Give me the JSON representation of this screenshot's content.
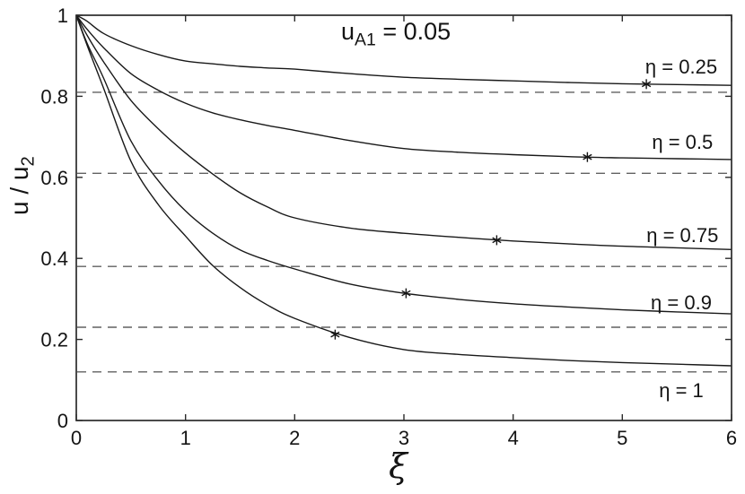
{
  "figure": {
    "background": "#ffffff",
    "annotation": {
      "pre": "u",
      "sub": "A1",
      "post": " = 0.05",
      "plain": "u_A1 = 0.05"
    },
    "ylabel": {
      "pre": "u / u",
      "sub": "2",
      "plain": "u / u_2"
    },
    "xlabel": "ξ"
  },
  "chart_data": {
    "type": "line",
    "title": "u_A1 = 0.05",
    "xlabel": "ξ",
    "ylabel": "u / u_2",
    "xlim": [
      0,
      6
    ],
    "ylim": [
      0,
      1
    ],
    "xticks": [
      0,
      1,
      2,
      3,
      4,
      5,
      6
    ],
    "xtick_labels": [
      "0",
      "1",
      "2",
      "3",
      "4",
      "5",
      "6"
    ],
    "yticks": [
      0,
      0.2,
      0.4,
      0.6,
      0.8,
      1
    ],
    "ytick_labels": [
      "0",
      "0.2",
      "0.4",
      "0.6",
      "0.8",
      "1"
    ],
    "grid": false,
    "legend_position": "inline-right-labels",
    "line_color": "#191919",
    "dashed_color": "#616161",
    "marker_style": "asterisk",
    "x": [
      0,
      0.1,
      0.25,
      0.5,
      0.75,
      1,
      1.25,
      1.5,
      1.75,
      2,
      2.5,
      3,
      3.5,
      4,
      4.5,
      5,
      5.5,
      6
    ],
    "series": [
      {
        "name": "η = 0.25",
        "eta": 0.25,
        "asymptote": 0.81,
        "marker": {
          "x": 5.22,
          "y": 0.83
        },
        "label": {
          "text": "η = 0.25",
          "x": 5.54,
          "y": 0.874
        },
        "values": [
          1,
          0.985,
          0.955,
          0.925,
          0.903,
          0.887,
          0.88,
          0.874,
          0.87,
          0.867,
          0.856,
          0.847,
          0.842,
          0.838,
          0.834,
          0.831,
          0.829,
          0.827
        ]
      },
      {
        "name": "η = 0.5",
        "eta": 0.5,
        "asymptote": 0.61,
        "marker": {
          "x": 4.68,
          "y": 0.65
        },
        "label": {
          "text": "η = 0.5",
          "x": 5.55,
          "y": 0.688
        },
        "values": [
          1,
          0.965,
          0.92,
          0.856,
          0.815,
          0.783,
          0.759,
          0.742,
          0.728,
          0.716,
          0.691,
          0.671,
          0.662,
          0.656,
          0.651,
          0.648,
          0.646,
          0.644
        ]
      },
      {
        "name": "η = 0.75",
        "eta": 0.75,
        "asymptote": 0.38,
        "marker": {
          "x": 3.85,
          "y": 0.445
        },
        "label": {
          "text": "η = 0.75",
          "x": 5.55,
          "y": 0.458
        },
        "values": [
          1,
          0.95,
          0.885,
          0.79,
          0.72,
          0.66,
          0.608,
          0.562,
          0.527,
          0.5,
          0.475,
          0.462,
          0.452,
          0.443,
          0.436,
          0.43,
          0.426,
          0.422
        ]
      },
      {
        "name": "η = 0.9",
        "eta": 0.9,
        "asymptote": 0.23,
        "marker": {
          "x": 3.02,
          "y": 0.314
        },
        "label": {
          "text": "η = 0.9",
          "x": 5.54,
          "y": 0.292
        },
        "values": [
          1,
          0.93,
          0.845,
          0.69,
          0.592,
          0.517,
          0.462,
          0.421,
          0.395,
          0.374,
          0.337,
          0.314,
          0.299,
          0.288,
          0.28,
          0.273,
          0.268,
          0.263
        ]
      },
      {
        "name": "η = 1",
        "eta": 1,
        "asymptote": 0.12,
        "marker": {
          "x": 2.37,
          "y": 0.212
        },
        "label": {
          "text": "η = 1",
          "x": 5.54,
          "y": 0.075
        },
        "values": [
          1,
          0.925,
          0.82,
          0.64,
          0.533,
          0.455,
          0.382,
          0.328,
          0.285,
          0.252,
          0.205,
          0.175,
          0.163,
          0.155,
          0.148,
          0.143,
          0.139,
          0.135
        ]
      }
    ]
  }
}
